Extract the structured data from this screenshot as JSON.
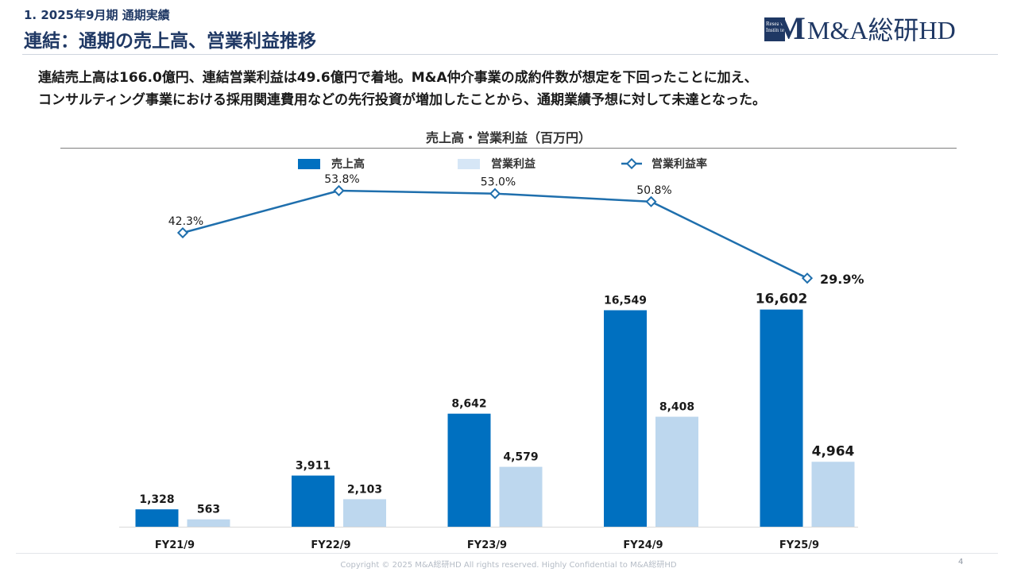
{
  "header": {
    "section_label": "1. 2025年9月期 通期実績",
    "title": "連結：通期の売上高、営業利益推移",
    "logo_badge_line1": "Research",
    "logo_badge_line2": "Institute",
    "logo_text": "M&A総研HD"
  },
  "summary": {
    "line1": "連結売上高は166.0億円、連結営業利益は49.6億円で着地。M&A仲介事業の成約件数が想定を下回ったことに加え、",
    "line2": "コンサルティング事業における採用関連費用などの先行投資が増加したことから、通期業績予想に対して未達となった。"
  },
  "chart_data": {
    "type": "bar",
    "title": "売上高・営業利益（百万円）",
    "categories": [
      "FY21/9",
      "FY22/9",
      "FY23/9",
      "FY24/9",
      "FY25/9"
    ],
    "series": [
      {
        "name": "売上高",
        "kind": "bar",
        "color": "#0070c0",
        "values": [
          1328,
          3911,
          8642,
          16549,
          16602
        ],
        "labels": [
          "1,328",
          "3,911",
          "8,642",
          "16,549",
          "16,602"
        ]
      },
      {
        "name": "営業利益",
        "kind": "bar",
        "color": "#bdd7ee",
        "values": [
          563,
          2103,
          4579,
          8408,
          4964
        ],
        "labels": [
          "563",
          "2,103",
          "4,579",
          "8,408",
          "4,964"
        ]
      },
      {
        "name": "営業利益率",
        "kind": "line",
        "color": "#1f6fad",
        "values": [
          42.3,
          53.8,
          53.0,
          50.8,
          29.9
        ],
        "labels": [
          "42.3%",
          "53.8%",
          "53.0%",
          "50.8%",
          "29.9%"
        ]
      }
    ],
    "legend_position": "top",
    "grid": false
  },
  "footer": {
    "copyright": "Copyright © 2025 M&A総研HD All rights reserved. Highly Confidential to M&A総研HD",
    "page_number": "4"
  }
}
